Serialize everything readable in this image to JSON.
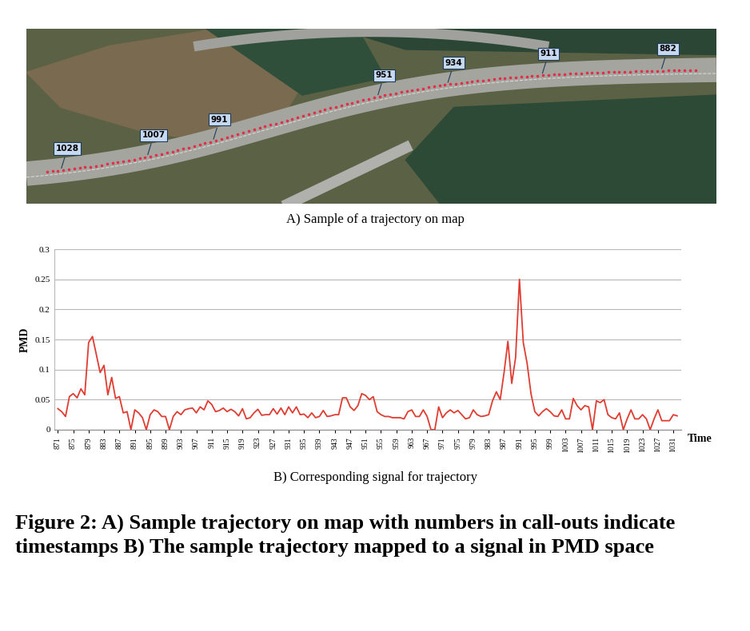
{
  "figure": {
    "caption": "Figure 2: A) Sample trajectory on map with numbers in call-outs indicate timestamps B) The sample trajectory mapped to a signal in PMD space"
  },
  "map": {
    "subtitle": "A) Sample of a trajectory on map",
    "callouts": [
      1028,
      1007,
      991,
      951,
      934,
      911,
      882
    ]
  },
  "chart_data": {
    "type": "line",
    "subtitle": "B) Corresponding signal for trajectory",
    "x_label": "Time",
    "y_label": "PMD",
    "color": "#e03c31",
    "x": [
      871,
      872,
      873,
      874,
      875,
      876,
      877,
      878,
      879,
      880,
      881,
      882,
      883,
      884,
      885,
      886,
      887,
      888,
      889,
      890,
      891,
      892,
      893,
      894,
      895,
      896,
      897,
      898,
      899,
      900,
      901,
      902,
      903,
      904,
      905,
      906,
      907,
      908,
      909,
      910,
      911,
      912,
      913,
      914,
      915,
      916,
      917,
      918,
      919,
      920,
      921,
      922,
      923,
      924,
      925,
      926,
      927,
      928,
      929,
      930,
      931,
      932,
      933,
      934,
      935,
      936,
      937,
      938,
      939,
      940,
      941,
      942,
      943,
      944,
      945,
      946,
      947,
      948,
      949,
      950,
      951,
      952,
      953,
      954,
      955,
      956,
      957,
      958,
      959,
      960,
      961,
      962,
      963,
      964,
      965,
      966,
      967,
      968,
      969,
      970,
      971,
      972,
      973,
      974,
      975,
      976,
      977,
      978,
      979,
      980,
      981,
      982,
      983,
      984,
      985,
      986,
      987,
      988,
      989,
      990,
      991,
      992,
      993,
      994,
      995,
      996,
      997,
      998,
      999,
      1000,
      1001,
      1002,
      1003,
      1004,
      1005,
      1006,
      1007,
      1008,
      1009,
      1010,
      1011,
      1012,
      1013,
      1014,
      1015,
      1016,
      1017,
      1018,
      1019,
      1020,
      1021,
      1022,
      1023,
      1024,
      1025,
      1026,
      1027,
      1028,
      1029,
      1030,
      1031,
      1032
    ],
    "values": [
      0.035,
      0.03,
      0.022,
      0.055,
      0.06,
      0.053,
      0.068,
      0.058,
      0.145,
      0.155,
      0.125,
      0.095,
      0.107,
      0.058,
      0.087,
      0.052,
      0.055,
      0.028,
      0.03,
      0.0,
      0.033,
      0.028,
      0.02,
      0.0,
      0.025,
      0.033,
      0.03,
      0.022,
      0.022,
      0.0,
      0.022,
      0.03,
      0.025,
      0.033,
      0.035,
      0.036,
      0.028,
      0.038,
      0.033,
      0.048,
      0.042,
      0.03,
      0.032,
      0.036,
      0.03,
      0.034,
      0.03,
      0.023,
      0.035,
      0.018,
      0.02,
      0.028,
      0.034,
      0.024,
      0.025,
      0.025,
      0.035,
      0.026,
      0.036,
      0.025,
      0.038,
      0.028,
      0.038,
      0.025,
      0.026,
      0.02,
      0.028,
      0.02,
      0.022,
      0.032,
      0.022,
      0.023,
      0.025,
      0.025,
      0.053,
      0.053,
      0.038,
      0.032,
      0.04,
      0.06,
      0.057,
      0.05,
      0.055,
      0.03,
      0.025,
      0.022,
      0.022,
      0.02,
      0.02,
      0.02,
      0.018,
      0.03,
      0.033,
      0.022,
      0.022,
      0.033,
      0.022,
      0.0,
      0.0,
      0.038,
      0.02,
      0.028,
      0.033,
      0.028,
      0.032,
      0.025,
      0.018,
      0.02,
      0.033,
      0.025,
      0.022,
      0.023,
      0.025,
      0.048,
      0.063,
      0.05,
      0.095,
      0.147,
      0.077,
      0.12,
      0.25,
      0.145,
      0.11,
      0.06,
      0.03,
      0.023,
      0.03,
      0.035,
      0.03,
      0.023,
      0.022,
      0.033,
      0.018,
      0.018,
      0.052,
      0.04,
      0.033,
      0.04,
      0.038,
      0.0,
      0.048,
      0.045,
      0.05,
      0.025,
      0.02,
      0.018,
      0.028,
      0.0,
      0.018,
      0.033,
      0.018,
      0.018,
      0.025,
      0.018,
      0.0,
      0.018,
      0.033,
      0.015,
      0.015,
      0.015,
      0.025,
      0.023
    ],
    "xlim": [
      870,
      1033
    ],
    "xticks": [
      871,
      875,
      879,
      883,
      887,
      891,
      895,
      899,
      903,
      907,
      911,
      915,
      919,
      923,
      927,
      931,
      935,
      939,
      943,
      947,
      951,
      955,
      959,
      963,
      967,
      971,
      975,
      979,
      983,
      987,
      991,
      995,
      999,
      1003,
      1007,
      1011,
      1015,
      1019,
      1023,
      1027,
      1031
    ],
    "ylim": [
      0,
      0.3
    ],
    "yticks": [
      0,
      0.05,
      0.1,
      0.15,
      0.2,
      0.25,
      0.3
    ],
    "grid": true
  }
}
